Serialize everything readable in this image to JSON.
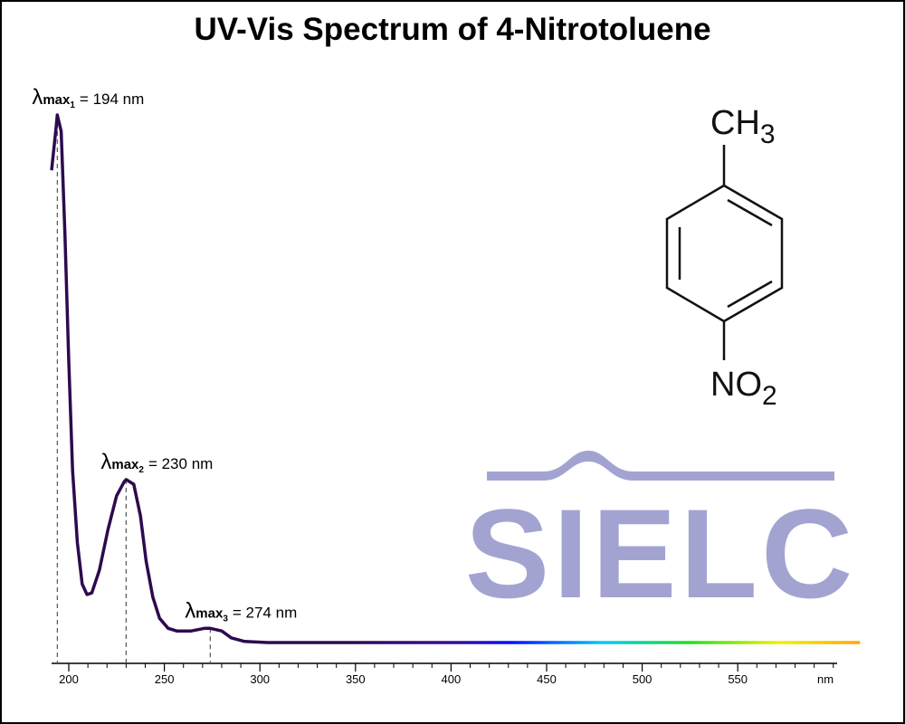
{
  "chart_data": {
    "type": "line",
    "title": "UV-Vis Spectrum of 4-Nitrotoluene",
    "x_unit": "nm",
    "xlim": [
      191,
      602
    ],
    "ylim": [
      0,
      1
    ],
    "xticks": [
      200,
      250,
      300,
      350,
      400,
      450,
      500,
      550
    ],
    "xminorticks": [
      210,
      220,
      230,
      240,
      260,
      270,
      280,
      290,
      310,
      320,
      330,
      340,
      360,
      370,
      380,
      390,
      410,
      420,
      430,
      440,
      460,
      470,
      480,
      490,
      510,
      520,
      530,
      540,
      560,
      570,
      580,
      590,
      600
    ],
    "series": [
      {
        "name": "4-Nitrotoluene",
        "colors": [
          "#2d0a4e",
          "#2d0a4e",
          "#3a0c9a",
          "#0010ff",
          "#00c8ff",
          "#20e020",
          "#f0f000",
          "#ffa500"
        ],
        "x": [
          191,
          193.4,
          194,
          196,
          198,
          200,
          202,
          204.5,
          207,
          209.5,
          212,
          216,
          220.5,
          225,
          229,
          230,
          234,
          237.5,
          240.5,
          244,
          247.5,
          252,
          256.5,
          264,
          271,
          274,
          280,
          285,
          292,
          304,
          614
        ],
        "values": [
          0.895,
          0.978,
          1.0,
          0.969,
          0.772,
          0.532,
          0.326,
          0.189,
          0.111,
          0.091,
          0.094,
          0.137,
          0.214,
          0.278,
          0.305,
          0.309,
          0.3,
          0.24,
          0.154,
          0.086,
          0.046,
          0.027,
          0.022,
          0.022,
          0.027,
          0.027,
          0.022,
          0.009,
          0.002,
          0,
          0
        ]
      }
    ],
    "annotations": [
      {
        "symbol": "λ",
        "sub": "max",
        "index": "1",
        "text": "= 194 nm",
        "x": 194
      },
      {
        "symbol": "λ",
        "sub": "max",
        "index": "2",
        "text": "= 230 nm",
        "x": 230
      },
      {
        "symbol": "λ",
        "sub": "max",
        "index": "3",
        "text": "= 274 nm",
        "x": 274
      }
    ]
  },
  "molecule": {
    "top_group": "CH",
    "top_sub": "3",
    "bottom_group": "NO",
    "bottom_sub": "2"
  },
  "logo": "SIELC"
}
